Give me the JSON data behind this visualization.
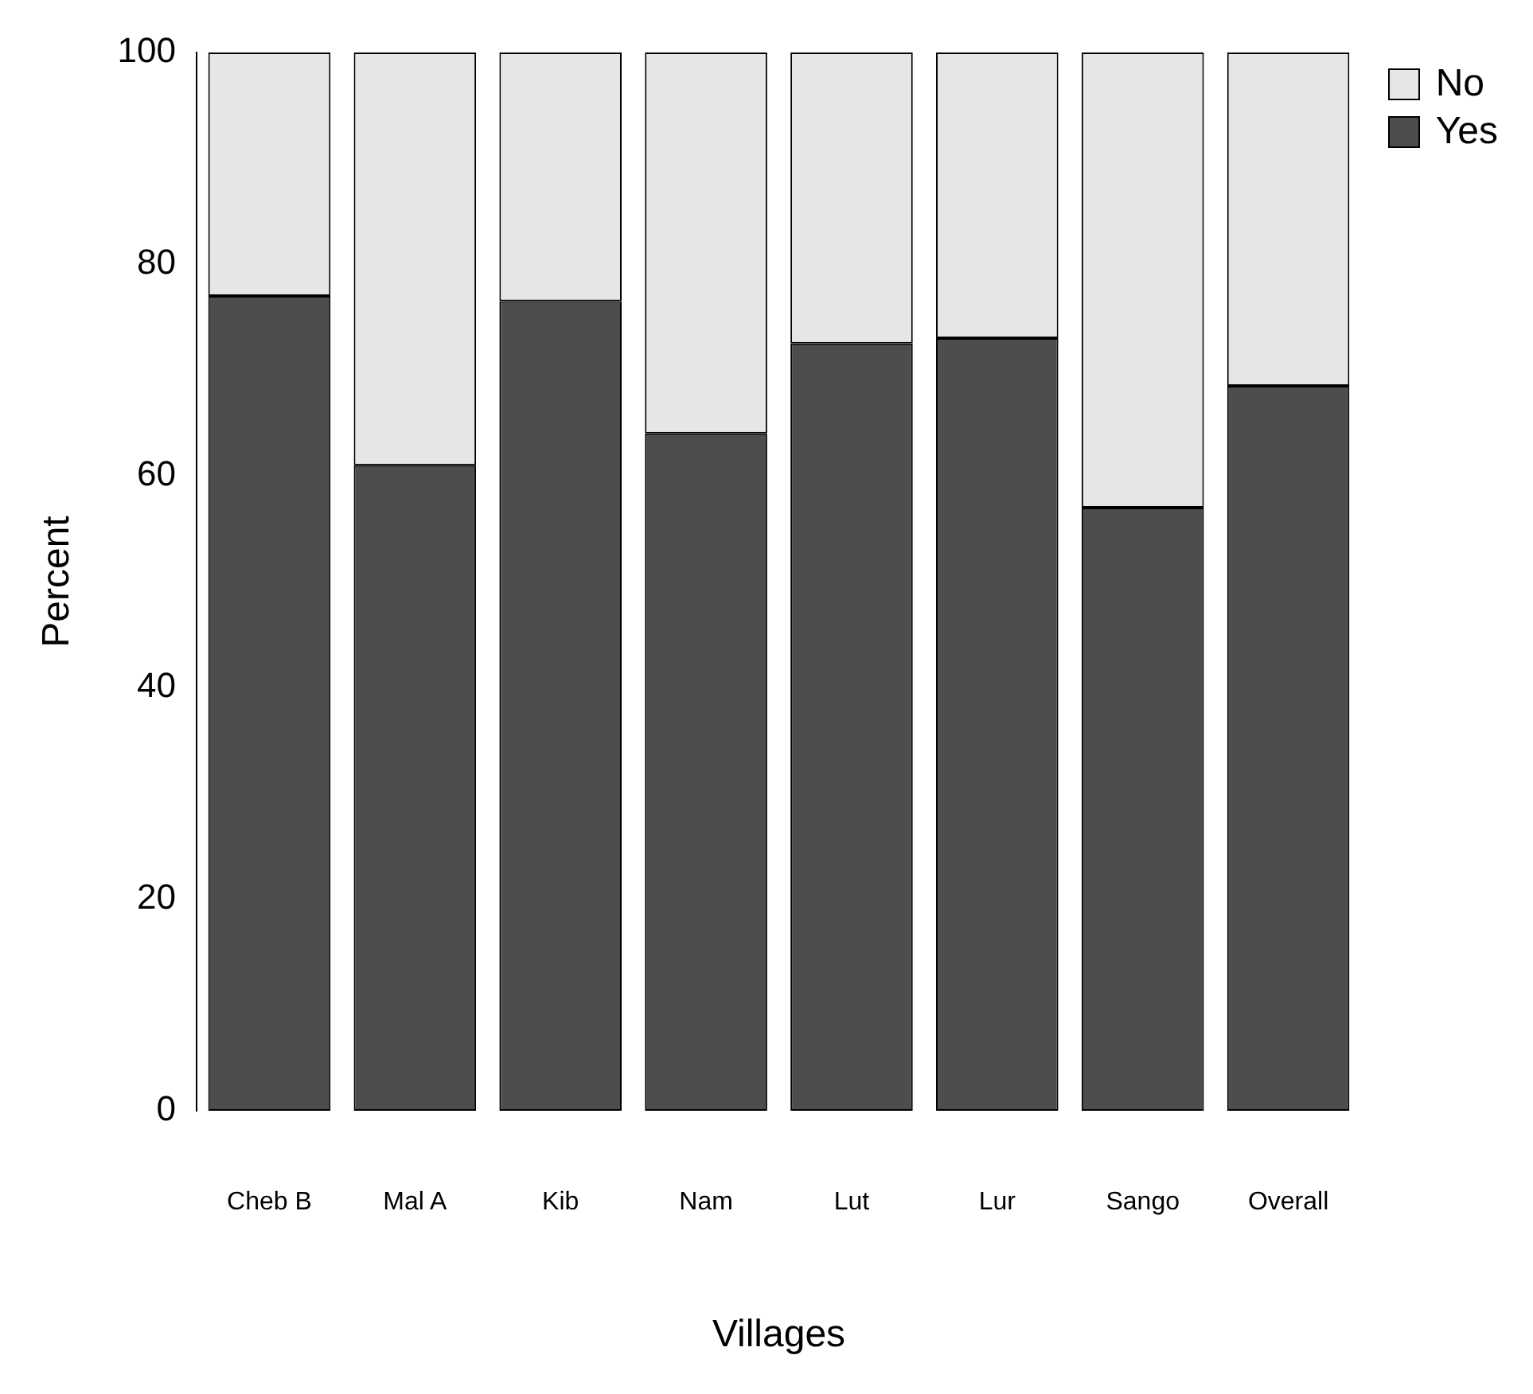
{
  "chart_data": {
    "type": "bar",
    "stacked": true,
    "xlabel": "Villages",
    "ylabel": "Percent",
    "categories": [
      "Cheb B",
      "Mal A",
      "Kib",
      "Nam",
      "Lut",
      "Lur",
      "Sango",
      "Overall"
    ],
    "series": [
      {
        "name": "Yes",
        "color": "#4d4d4d",
        "values": [
          77,
          61,
          76.5,
          64,
          72.5,
          73,
          57,
          68.5
        ]
      },
      {
        "name": "No",
        "color": "#e6e6e6",
        "values": [
          23,
          39,
          23.5,
          36,
          27.5,
          27,
          43,
          31.5
        ]
      }
    ],
    "ylim": [
      0,
      100
    ],
    "yticks": [
      0,
      20,
      40,
      60,
      80,
      100
    ],
    "legend": "top right"
  }
}
